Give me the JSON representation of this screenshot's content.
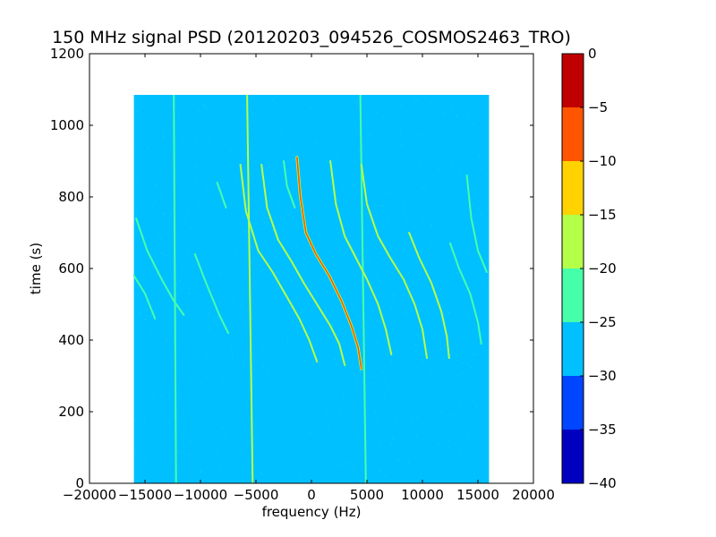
{
  "chart_data": {
    "type": "heatmap",
    "title": "150 MHz signal PSD (20120203_094526_COSMOS2463_TRO)",
    "xlabel": "frequency (Hz)",
    "ylabel": "time (s)",
    "xlim": [
      -20000,
      20000
    ],
    "ylim": [
      0,
      1200
    ],
    "xticks": [
      -20000,
      -15000,
      -10000,
      -5000,
      0,
      5000,
      10000,
      15000,
      20000
    ],
    "xtick_labels": [
      "−20000",
      "−15000",
      "−10000",
      "−5000",
      "0",
      "5000",
      "10000",
      "15000",
      "20000"
    ],
    "yticks": [
      0,
      200,
      400,
      600,
      800,
      1000,
      1200
    ],
    "ytick_labels": [
      "0",
      "200",
      "400",
      "600",
      "800",
      "1000",
      "1200"
    ],
    "data_extent": {
      "x": [
        -16000,
        16000
      ],
      "y": [
        0,
        1085
      ]
    },
    "background_level_db": -27.5,
    "colorbar": {
      "range": [
        -40,
        0
      ],
      "ticks": [
        0,
        -5,
        -10,
        -15,
        -20,
        -25,
        -30,
        -35,
        -40
      ],
      "tick_labels": [
        "0",
        "−5",
        "−10",
        "−15",
        "−20",
        "−25",
        "−30",
        "−35",
        "−40"
      ],
      "bands": [
        {
          "from": -5,
          "to": 0,
          "color": "#c00000"
        },
        {
          "from": -10,
          "to": -5,
          "color": "#ff5500"
        },
        {
          "from": -15,
          "to": -10,
          "color": "#ffd200"
        },
        {
          "from": -20,
          "to": -15,
          "color": "#b4ff48"
        },
        {
          "from": -25,
          "to": -20,
          "color": "#46ffaa"
        },
        {
          "from": -30,
          "to": -25,
          "color": "#00c0ff"
        },
        {
          "from": -35,
          "to": -30,
          "color": "#0045ff"
        },
        {
          "from": -40,
          "to": -35,
          "color": "#0000c0"
        }
      ]
    },
    "vertical_lines": [
      {
        "points": [
          [
            -12400,
            1085
          ],
          [
            -12200,
            0
          ]
        ],
        "level_db": -22
      },
      {
        "points": [
          [
            -5800,
            1085
          ],
          [
            -5300,
            0
          ]
        ],
        "level_db": -18
      },
      {
        "points": [
          [
            4400,
            1085
          ],
          [
            4900,
            0
          ]
        ],
        "level_db": -22
      }
    ],
    "doppler_curves": [
      {
        "points": [
          [
            -15800,
            740
          ],
          [
            -14800,
            650
          ],
          [
            -13500,
            570
          ],
          [
            -12400,
            510
          ],
          [
            -11500,
            470
          ]
        ],
        "level_db": -22
      },
      {
        "points": [
          [
            -16000,
            580
          ],
          [
            -15000,
            530
          ],
          [
            -14100,
            460
          ]
        ],
        "level_db": -22
      },
      {
        "points": [
          [
            -10500,
            640
          ],
          [
            -9500,
            560
          ],
          [
            -8300,
            470
          ],
          [
            -7500,
            420
          ]
        ],
        "level_db": -22
      },
      {
        "points": [
          [
            -6400,
            890
          ],
          [
            -5900,
            760
          ],
          [
            -4800,
            650
          ],
          [
            -3500,
            590
          ],
          [
            -2200,
            520
          ],
          [
            -1100,
            460
          ],
          [
            -200,
            400
          ],
          [
            500,
            340
          ]
        ],
        "level_db": -18
      },
      {
        "points": [
          [
            -4500,
            890
          ],
          [
            -4000,
            770
          ],
          [
            -3000,
            680
          ],
          [
            -1800,
            620
          ],
          [
            -700,
            560
          ],
          [
            500,
            500
          ],
          [
            1700,
            440
          ],
          [
            2500,
            390
          ],
          [
            3000,
            330
          ]
        ],
        "level_db": -18
      },
      {
        "points": [
          [
            -1300,
            910
          ],
          [
            -1000,
            800
          ],
          [
            -500,
            700
          ],
          [
            400,
            640
          ],
          [
            1600,
            580
          ],
          [
            2700,
            510
          ],
          [
            3600,
            440
          ],
          [
            4200,
            380
          ],
          [
            4500,
            320
          ]
        ],
        "level_db": -8
      },
      {
        "points": [
          [
            1700,
            900
          ],
          [
            2200,
            780
          ],
          [
            3000,
            690
          ],
          [
            4000,
            630
          ],
          [
            5000,
            570
          ],
          [
            6000,
            500
          ],
          [
            6700,
            430
          ],
          [
            7200,
            360
          ]
        ],
        "level_db": -18
      },
      {
        "points": [
          [
            4500,
            890
          ],
          [
            5000,
            780
          ],
          [
            6000,
            690
          ],
          [
            7100,
            630
          ],
          [
            8300,
            570
          ],
          [
            9300,
            500
          ],
          [
            10000,
            430
          ],
          [
            10400,
            350
          ]
        ],
        "level_db": -18
      },
      {
        "points": [
          [
            8800,
            700
          ],
          [
            9700,
            630
          ],
          [
            10800,
            560
          ],
          [
            11700,
            480
          ],
          [
            12200,
            410
          ],
          [
            12400,
            350
          ]
        ],
        "level_db": -20
      },
      {
        "points": [
          [
            12500,
            670
          ],
          [
            13300,
            600
          ],
          [
            14300,
            530
          ],
          [
            15000,
            450
          ],
          [
            15300,
            390
          ]
        ],
        "level_db": -22
      },
      {
        "points": [
          [
            14000,
            860
          ],
          [
            14400,
            740
          ],
          [
            15000,
            650
          ],
          [
            15800,
            590
          ]
        ],
        "level_db": -22
      },
      {
        "points": [
          [
            -2500,
            900
          ],
          [
            -2200,
            830
          ],
          [
            -1500,
            770
          ]
        ],
        "level_db": -22
      },
      {
        "points": [
          [
            -8500,
            840
          ],
          [
            -7700,
            770
          ]
        ],
        "level_db": -22
      }
    ]
  }
}
